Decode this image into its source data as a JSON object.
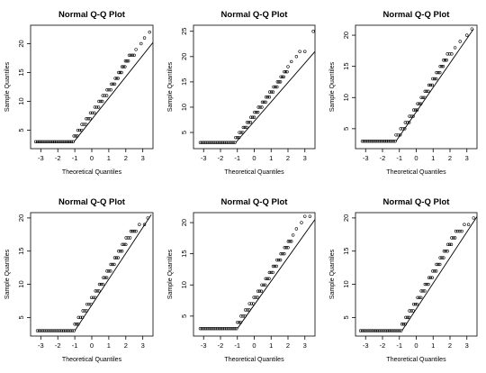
{
  "chart_data": [
    {
      "type": "scatter",
      "title": "Normal Q-Q Plot",
      "xlabel": "Theoretical Quantiles",
      "ylabel": "Sample Quantiles",
      "xlim": [
        -3.6,
        3.6
      ],
      "ylim": [
        1.8,
        23.2
      ],
      "xticks": [
        -3,
        -2,
        -1,
        0,
        1,
        2,
        3
      ],
      "yticks": [
        5,
        10,
        15,
        20
      ],
      "reference_line": [
        [
          -1.05,
          3
        ],
        [
          3.6,
          20.2
        ]
      ],
      "levels": [
        {
          "y": 3,
          "x_from": -3.3,
          "x_to": -1.1
        },
        {
          "y": 4,
          "x_from": -1.05,
          "x_to": -0.85
        },
        {
          "y": 5,
          "x_from": -0.82,
          "x_to": -0.6
        },
        {
          "y": 6,
          "x_from": -0.58,
          "x_to": -0.35
        },
        {
          "y": 7,
          "x_from": -0.32,
          "x_to": -0.1
        },
        {
          "y": 8,
          "x_from": -0.08,
          "x_to": 0.15
        },
        {
          "y": 9,
          "x_from": 0.18,
          "x_to": 0.4
        },
        {
          "y": 10,
          "x_from": 0.42,
          "x_to": 0.62
        },
        {
          "y": 11,
          "x_from": 0.65,
          "x_to": 0.88
        },
        {
          "y": 12,
          "x_from": 0.9,
          "x_to": 1.12
        },
        {
          "y": 13,
          "x_from": 1.15,
          "x_to": 1.35
        },
        {
          "y": 14,
          "x_from": 1.38,
          "x_to": 1.55
        },
        {
          "y": 15,
          "x_from": 1.58,
          "x_to": 1.75
        },
        {
          "y": 16,
          "x_from": 1.78,
          "x_to": 1.95
        },
        {
          "y": 17,
          "x_from": 1.98,
          "x_to": 2.15
        },
        {
          "y": 18,
          "x_from": 2.2,
          "x_to": 2.5
        }
      ],
      "extra_points": [
        [
          2.6,
          19
        ],
        [
          2.9,
          20
        ],
        [
          3.1,
          21
        ],
        [
          3.4,
          22
        ]
      ]
    },
    {
      "type": "scatter",
      "title": "Normal Q-Q Plot",
      "xlabel": "Theoretical Quantiles",
      "ylabel": "Sample Quantiles",
      "xlim": [
        -3.6,
        3.6
      ],
      "ylim": [
        1.8,
        26.2
      ],
      "xticks": [
        -3,
        -2,
        -1,
        0,
        1,
        2,
        3
      ],
      "yticks": [
        5,
        10,
        15,
        20,
        25
      ],
      "reference_line": [
        [
          -1.1,
          3
        ],
        [
          3.6,
          21
        ]
      ],
      "levels": [
        {
          "y": 3,
          "x_from": -3.2,
          "x_to": -1.15
        },
        {
          "y": 4,
          "x_from": -1.1,
          "x_to": -0.9
        },
        {
          "y": 5,
          "x_from": -0.88,
          "x_to": -0.68
        },
        {
          "y": 6,
          "x_from": -0.65,
          "x_to": -0.45
        },
        {
          "y": 7,
          "x_from": -0.42,
          "x_to": -0.22
        },
        {
          "y": 8,
          "x_from": -0.2,
          "x_to": 0.0
        },
        {
          "y": 9,
          "x_from": 0.02,
          "x_to": 0.22
        },
        {
          "y": 10,
          "x_from": 0.25,
          "x_to": 0.45
        },
        {
          "y": 11,
          "x_from": 0.48,
          "x_to": 0.68
        },
        {
          "y": 12,
          "x_from": 0.7,
          "x_to": 0.9
        },
        {
          "y": 13,
          "x_from": 0.92,
          "x_to": 1.12
        },
        {
          "y": 14,
          "x_from": 1.15,
          "x_to": 1.35
        },
        {
          "y": 15,
          "x_from": 1.38,
          "x_to": 1.55
        },
        {
          "y": 16,
          "x_from": 1.58,
          "x_to": 1.75
        },
        {
          "y": 17,
          "x_from": 1.78,
          "x_to": 1.95
        }
      ],
      "extra_points": [
        [
          2.0,
          18
        ],
        [
          2.2,
          19
        ],
        [
          2.5,
          20
        ],
        [
          2.7,
          21
        ],
        [
          3.0,
          21
        ],
        [
          3.5,
          25
        ]
      ]
    },
    {
      "type": "scatter",
      "title": "Normal Q-Q Plot",
      "xlabel": "Theoretical Quantiles",
      "ylabel": "Sample Quantiles",
      "xlim": [
        -3.6,
        3.6
      ],
      "ylim": [
        1.8,
        21.6
      ],
      "xticks": [
        -3,
        -2,
        -1,
        0,
        1,
        2,
        3
      ],
      "yticks": [
        5,
        10,
        15,
        20
      ],
      "reference_line": [
        [
          -1.2,
          3
        ],
        [
          3.4,
          21
        ]
      ],
      "levels": [
        {
          "y": 3,
          "x_from": -3.2,
          "x_to": -1.25
        },
        {
          "y": 4,
          "x_from": -1.2,
          "x_to": -0.95
        },
        {
          "y": 5,
          "x_from": -0.92,
          "x_to": -0.68
        },
        {
          "y": 6,
          "x_from": -0.65,
          "x_to": -0.42
        },
        {
          "y": 7,
          "x_from": -0.4,
          "x_to": -0.18
        },
        {
          "y": 8,
          "x_from": -0.15,
          "x_to": 0.05
        },
        {
          "y": 9,
          "x_from": 0.08,
          "x_to": 0.28
        },
        {
          "y": 10,
          "x_from": 0.3,
          "x_to": 0.5
        },
        {
          "y": 11,
          "x_from": 0.52,
          "x_to": 0.72
        },
        {
          "y": 12,
          "x_from": 0.75,
          "x_to": 0.95
        },
        {
          "y": 13,
          "x_from": 0.98,
          "x_to": 1.18
        },
        {
          "y": 14,
          "x_from": 1.2,
          "x_to": 1.4
        },
        {
          "y": 15,
          "x_from": 1.42,
          "x_to": 1.6
        },
        {
          "y": 16,
          "x_from": 1.62,
          "x_to": 1.8
        },
        {
          "y": 17,
          "x_from": 1.85,
          "x_to": 2.1
        }
      ],
      "extra_points": [
        [
          2.3,
          18
        ],
        [
          2.6,
          19
        ],
        [
          3.0,
          20
        ],
        [
          3.3,
          21
        ]
      ]
    },
    {
      "type": "scatter",
      "title": "Normal Q-Q Plot",
      "xlabel": "Theoretical Quantiles",
      "ylabel": "Sample Quantiles",
      "xlim": [
        -3.6,
        3.6
      ],
      "ylim": [
        2.2,
        20.8
      ],
      "xticks": [
        -3,
        -2,
        -1,
        0,
        1,
        2,
        3
      ],
      "yticks": [
        5,
        10,
        15,
        20
      ],
      "reference_line": [
        [
          -1.0,
          3
        ],
        [
          3.5,
          20.5
        ]
      ],
      "levels": [
        {
          "y": 3,
          "x_from": -3.2,
          "x_to": -1.05
        },
        {
          "y": 4,
          "x_from": -1.0,
          "x_to": -0.8
        },
        {
          "y": 5,
          "x_from": -0.78,
          "x_to": -0.55
        },
        {
          "y": 6,
          "x_from": -0.52,
          "x_to": -0.3
        },
        {
          "y": 7,
          "x_from": -0.28,
          "x_to": -0.05
        },
        {
          "y": 8,
          "x_from": -0.02,
          "x_to": 0.2
        },
        {
          "y": 9,
          "x_from": 0.22,
          "x_to": 0.42
        },
        {
          "y": 10,
          "x_from": 0.45,
          "x_to": 0.65
        },
        {
          "y": 11,
          "x_from": 0.68,
          "x_to": 0.88
        },
        {
          "y": 12,
          "x_from": 0.9,
          "x_to": 1.1
        },
        {
          "y": 13,
          "x_from": 1.12,
          "x_to": 1.32
        },
        {
          "y": 14,
          "x_from": 1.35,
          "x_to": 1.55
        },
        {
          "y": 15,
          "x_from": 1.58,
          "x_to": 1.78
        },
        {
          "y": 16,
          "x_from": 1.8,
          "x_to": 2.0
        },
        {
          "y": 17,
          "x_from": 2.02,
          "x_to": 2.25
        },
        {
          "y": 18,
          "x_from": 2.3,
          "x_to": 2.6
        }
      ],
      "extra_points": [
        [
          2.8,
          19
        ],
        [
          3.1,
          19
        ],
        [
          3.3,
          20
        ]
      ]
    },
    {
      "type": "scatter",
      "title": "Normal Q-Q Plot",
      "xlabel": "Theoretical Quantiles",
      "ylabel": "Sample Quantiles",
      "xlim": [
        -3.6,
        3.6
      ],
      "ylim": [
        1.8,
        21.6
      ],
      "xticks": [
        -3,
        -2,
        -1,
        0,
        1,
        2,
        3
      ],
      "yticks": [
        5,
        10,
        15,
        20
      ],
      "reference_line": [
        [
          -1.0,
          3
        ],
        [
          3.6,
          20.5
        ]
      ],
      "levels": [
        {
          "y": 3,
          "x_from": -3.2,
          "x_to": -1.05
        },
        {
          "y": 4,
          "x_from": -1.0,
          "x_to": -0.8
        },
        {
          "y": 5,
          "x_from": -0.78,
          "x_to": -0.55
        },
        {
          "y": 6,
          "x_from": -0.52,
          "x_to": -0.3
        },
        {
          "y": 7,
          "x_from": -0.28,
          "x_to": -0.05
        },
        {
          "y": 8,
          "x_from": -0.02,
          "x_to": 0.2
        },
        {
          "y": 9,
          "x_from": 0.22,
          "x_to": 0.42
        },
        {
          "y": 10,
          "x_from": 0.45,
          "x_to": 0.65
        },
        {
          "y": 11,
          "x_from": 0.68,
          "x_to": 0.88
        },
        {
          "y": 12,
          "x_from": 0.9,
          "x_to": 1.1
        },
        {
          "y": 13,
          "x_from": 1.12,
          "x_to": 1.32
        },
        {
          "y": 14,
          "x_from": 1.35,
          "x_to": 1.55
        },
        {
          "y": 15,
          "x_from": 1.58,
          "x_to": 1.78
        },
        {
          "y": 16,
          "x_from": 1.8,
          "x_to": 2.0
        },
        {
          "y": 17,
          "x_from": 2.02,
          "x_to": 2.2
        }
      ],
      "extra_points": [
        [
          2.3,
          18
        ],
        [
          2.5,
          19
        ],
        [
          2.8,
          20
        ],
        [
          3.0,
          21
        ],
        [
          3.3,
          21
        ]
      ]
    },
    {
      "type": "scatter",
      "title": "Normal Q-Q Plot",
      "xlabel": "Theoretical Quantiles",
      "ylabel": "Sample Quantiles",
      "xlim": [
        -3.6,
        3.6
      ],
      "ylim": [
        2.2,
        20.8
      ],
      "xticks": [
        -3,
        -2,
        -1,
        0,
        1,
        2,
        3
      ],
      "yticks": [
        5,
        10,
        15,
        20
      ],
      "reference_line": [
        [
          -0.85,
          3
        ],
        [
          3.6,
          20.2
        ]
      ],
      "levels": [
        {
          "y": 3,
          "x_from": -3.3,
          "x_to": -0.9
        },
        {
          "y": 4,
          "x_from": -0.85,
          "x_to": -0.65
        },
        {
          "y": 5,
          "x_from": -0.62,
          "x_to": -0.42
        },
        {
          "y": 6,
          "x_from": -0.4,
          "x_to": -0.18
        },
        {
          "y": 7,
          "x_from": -0.15,
          "x_to": 0.05
        },
        {
          "y": 8,
          "x_from": 0.08,
          "x_to": 0.28
        },
        {
          "y": 9,
          "x_from": 0.3,
          "x_to": 0.5
        },
        {
          "y": 10,
          "x_from": 0.52,
          "x_to": 0.72
        },
        {
          "y": 11,
          "x_from": 0.75,
          "x_to": 0.95
        },
        {
          "y": 12,
          "x_from": 0.98,
          "x_to": 1.18
        },
        {
          "y": 13,
          "x_from": 1.2,
          "x_to": 1.4
        },
        {
          "y": 14,
          "x_from": 1.42,
          "x_to": 1.62
        },
        {
          "y": 15,
          "x_from": 1.65,
          "x_to": 1.85
        },
        {
          "y": 16,
          "x_from": 1.88,
          "x_to": 2.08
        },
        {
          "y": 17,
          "x_from": 2.1,
          "x_to": 2.3
        },
        {
          "y": 18,
          "x_from": 2.35,
          "x_to": 2.7
        }
      ],
      "extra_points": [
        [
          2.85,
          19
        ],
        [
          3.1,
          19
        ],
        [
          3.4,
          20
        ]
      ]
    }
  ]
}
